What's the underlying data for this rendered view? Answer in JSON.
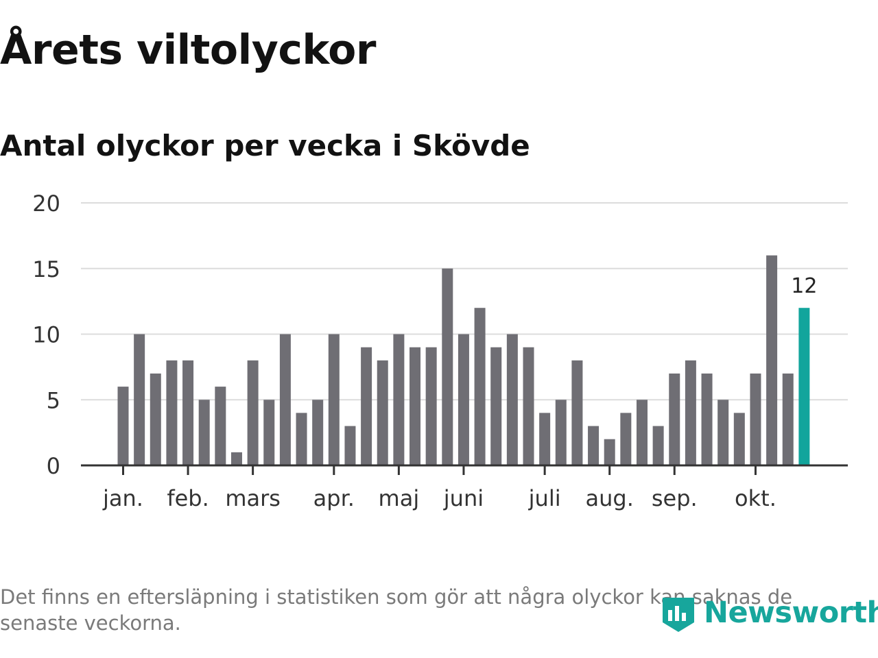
{
  "title": "Årets viltolyckor",
  "subtitle": "Antal olyckor per vecka i Skövde",
  "note": "Det finns en eftersläpning i statistiken som gör att några olyckor kan saknas de senaste veckorna.",
  "logo": {
    "text": "Newsworthy",
    "icon": "newsworthy-logo-icon",
    "color": "#17a69c"
  },
  "chart_data": {
    "type": "bar",
    "title": "Antal olyckor per vecka i Skövde",
    "xlabel": "",
    "ylabel": "",
    "ylim": [
      0,
      20
    ],
    "yticks": [
      0,
      5,
      10,
      15,
      20
    ],
    "grid": true,
    "bar_color": "#6f6e74",
    "highlight_color": "#12a59c",
    "highlight_index": 42,
    "annotation": {
      "index": 42,
      "text": "12"
    },
    "values": [
      6,
      10,
      7,
      8,
      8,
      5,
      6,
      1,
      8,
      5,
      10,
      4,
      5,
      10,
      3,
      9,
      8,
      10,
      9,
      9,
      15,
      10,
      12,
      9,
      10,
      9,
      4,
      5,
      8,
      3,
      2,
      4,
      5,
      3,
      7,
      8,
      7,
      5,
      4,
      7,
      16,
      7,
      12
    ],
    "month_labels": [
      {
        "label": "jan.",
        "index": 0
      },
      {
        "label": "feb.",
        "index": 4
      },
      {
        "label": "mars",
        "index": 8
      },
      {
        "label": "apr.",
        "index": 13
      },
      {
        "label": "maj",
        "index": 17
      },
      {
        "label": "juni",
        "index": 21
      },
      {
        "label": "juli",
        "index": 26
      },
      {
        "label": "aug.",
        "index": 30
      },
      {
        "label": "sep.",
        "index": 34
      },
      {
        "label": "okt.",
        "index": 39
      }
    ]
  }
}
